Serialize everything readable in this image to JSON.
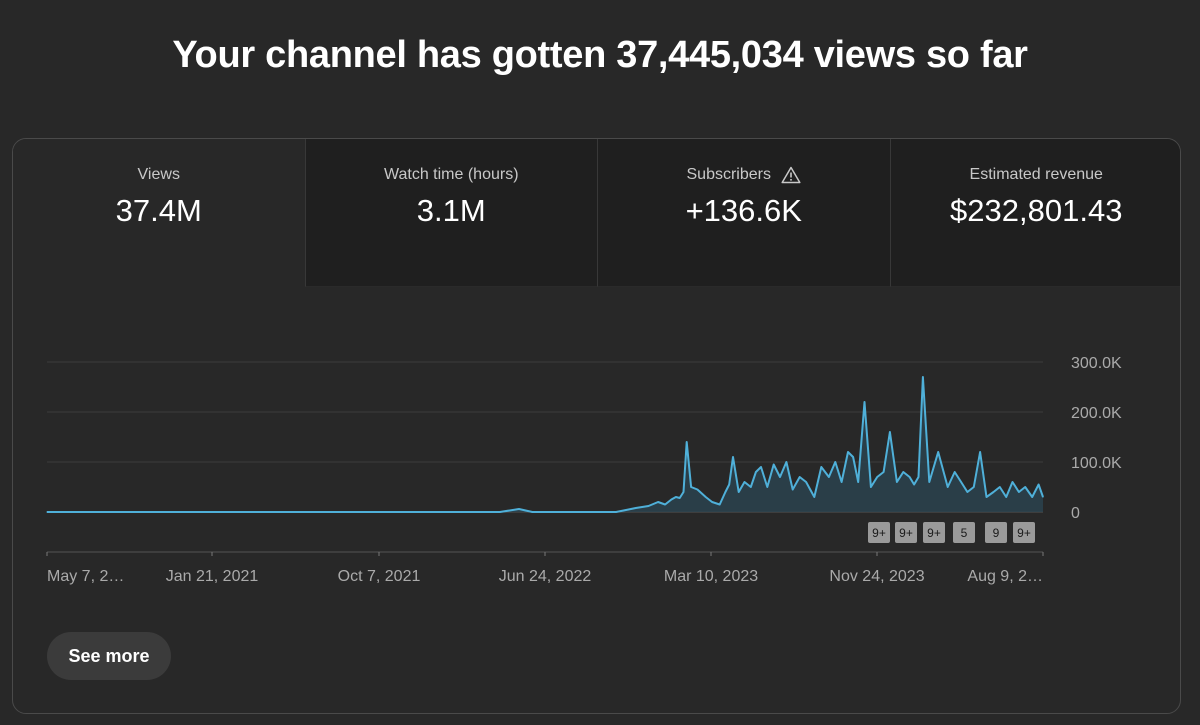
{
  "headline": "Your channel has gotten 37,445,034 views so far",
  "tabs": [
    {
      "label": "Views",
      "value": "37.4M",
      "selected": true
    },
    {
      "label": "Watch time (hours)",
      "value": "3.1M",
      "selected": false
    },
    {
      "label": "Subscribers",
      "value": "+136.6K",
      "selected": false,
      "icon": "warning-icon"
    },
    {
      "label": "Estimated revenue",
      "value": "$232,801.43",
      "selected": false
    }
  ],
  "see_more_label": "See more",
  "colors": {
    "line": "#4fb0d9",
    "fill": "#2b4450",
    "grid": "#3d3d3d",
    "axis_text": "#aaaaaa"
  },
  "chart_data": {
    "type": "line",
    "metric": "Views",
    "x_tick_labels": [
      "May 7, 2…",
      "Jan 21, 2021",
      "Oct 7, 2021",
      "Jun 24, 2022",
      "Mar 10, 2023",
      "Nov 24, 2023",
      "Aug 9, 2…"
    ],
    "y_tick_labels": [
      "300.0K",
      "200.0K",
      "100.0K",
      "0"
    ],
    "ylim": [
      0,
      300000
    ],
    "x": [
      "2020-05-07",
      "2022-04-20",
      "2022-05-20",
      "2022-06-10",
      "2022-08-01",
      "2022-10-20",
      "2022-11-20",
      "2022-12-10",
      "2022-12-25",
      "2023-01-05",
      "2023-01-15",
      "2023-01-22",
      "2023-01-28",
      "2023-02-03",
      "2023-02-08",
      "2023-02-15",
      "2023-02-25",
      "2023-03-10",
      "2023-03-20",
      "2023-04-01",
      "2023-04-10",
      "2023-04-16",
      "2023-04-22",
      "2023-05-01",
      "2023-05-10",
      "2023-05-20",
      "2023-05-28",
      "2023-06-05",
      "2023-06-15",
      "2023-06-25",
      "2023-07-05",
      "2023-07-15",
      "2023-07-25",
      "2023-08-05",
      "2023-08-15",
      "2023-08-28",
      "2023-09-08",
      "2023-09-20",
      "2023-09-30",
      "2023-10-10",
      "2023-10-20",
      "2023-10-28",
      "2023-11-05",
      "2023-11-15",
      "2023-11-25",
      "2023-12-05",
      "2023-12-15",
      "2023-12-25",
      "2024-01-05",
      "2024-01-15",
      "2024-01-25",
      "2024-02-01",
      "2024-02-08",
      "2024-02-15",
      "2024-02-25",
      "2024-03-10",
      "2024-03-25",
      "2024-04-05",
      "2024-04-15",
      "2024-04-25",
      "2024-05-05",
      "2024-05-15",
      "2024-05-25",
      "2024-06-05",
      "2024-06-15",
      "2024-06-25",
      "2024-07-05",
      "2024-07-15",
      "2024-07-25",
      "2024-08-05",
      "2024-08-15",
      "2024-08-22"
    ],
    "y": [
      0,
      0,
      6000,
      0,
      0,
      0,
      8000,
      12000,
      20000,
      15000,
      25000,
      30000,
      28000,
      40000,
      140000,
      50000,
      45000,
      30000,
      20000,
      15000,
      40000,
      55000,
      110000,
      40000,
      60000,
      50000,
      80000,
      90000,
      50000,
      95000,
      70000,
      100000,
      45000,
      70000,
      60000,
      30000,
      90000,
      70000,
      100000,
      60000,
      120000,
      110000,
      60000,
      220000,
      50000,
      70000,
      80000,
      160000,
      60000,
      80000,
      70000,
      55000,
      70000,
      270000,
      60000,
      120000,
      50000,
      80000,
      60000,
      40000,
      50000,
      120000,
      30000,
      40000,
      50000,
      30000,
      60000,
      40000,
      50000,
      30000,
      55000,
      30000
    ]
  },
  "annotation_markers": [
    "9+",
    "9+",
    "9+",
    "5",
    "9",
    "9+"
  ]
}
